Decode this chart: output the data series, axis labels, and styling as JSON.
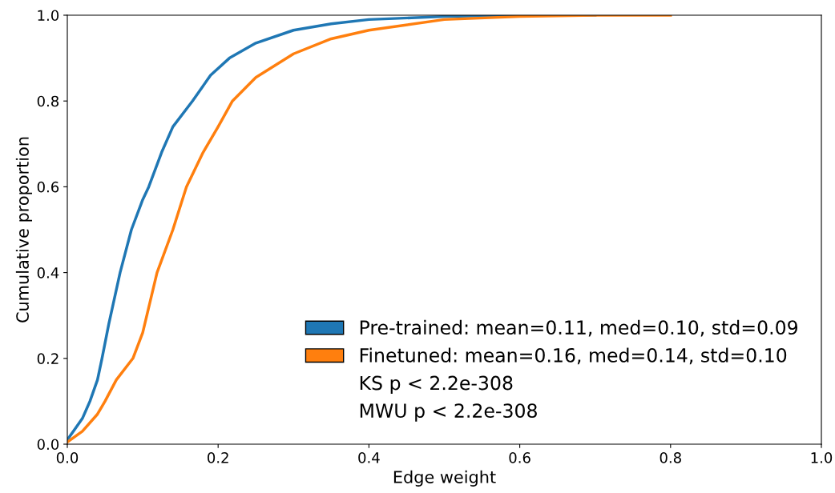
{
  "chart_data": {
    "type": "line",
    "xlabel": "Edge weight",
    "ylabel": "Cumulative proportion",
    "xlim": [
      0,
      1
    ],
    "ylim": [
      0,
      1
    ],
    "xticks": [
      {
        "value": 0,
        "label": "0.0"
      },
      0.2,
      0.4,
      0.6,
      0.8,
      {
        "value": 1,
        "label": "1.0"
      }
    ],
    "yticks": [
      {
        "value": 0,
        "label": "0.0"
      },
      0.2,
      0.4,
      0.6,
      0.8,
      {
        "value": 1,
        "label": "1.0"
      }
    ],
    "grid": false,
    "legend": "bottom right",
    "marker": "none",
    "line_style": "solid",
    "series": [
      {
        "name": "Pre-trained: mean=0.11, med=0.10, std=0.09",
        "color": "#1f77b4",
        "x": [
          0,
          0.01,
          0.02,
          0.03,
          0.04,
          0.046,
          0.055,
          0.07,
          0.085,
          0.1,
          0.108,
          0.125,
          0.14,
          0.166,
          0.19,
          0.215,
          0.25,
          0.3,
          0.35,
          0.4,
          0.5,
          0.6,
          0.7
        ],
        "values": [
          0.01,
          0.035,
          0.06,
          0.1,
          0.15,
          0.2,
          0.28,
          0.4,
          0.5,
          0.57,
          0.6,
          0.68,
          0.74,
          0.8,
          0.86,
          0.9,
          0.935,
          0.965,
          0.98,
          0.99,
          0.997,
          1.0,
          1.0
        ]
      },
      {
        "name": "Finetuned: mean=0.16, med=0.14, std=0.10",
        "color": "#ff7f0e",
        "x": [
          0,
          0.02,
          0.04,
          0.05,
          0.065,
          0.087,
          0.1,
          0.119,
          0.14,
          0.158,
          0.18,
          0.2,
          0.219,
          0.25,
          0.3,
          0.35,
          0.4,
          0.5,
          0.6,
          0.7,
          0.8
        ],
        "values": [
          0.005,
          0.03,
          0.07,
          0.1,
          0.15,
          0.2,
          0.26,
          0.4,
          0.5,
          0.6,
          0.68,
          0.74,
          0.8,
          0.855,
          0.91,
          0.945,
          0.965,
          0.99,
          0.997,
          1.0,
          1.0
        ]
      }
    ],
    "annotations": [
      "KS p < 2.2e-308",
      "MWU p < 2.2e-308"
    ]
  }
}
